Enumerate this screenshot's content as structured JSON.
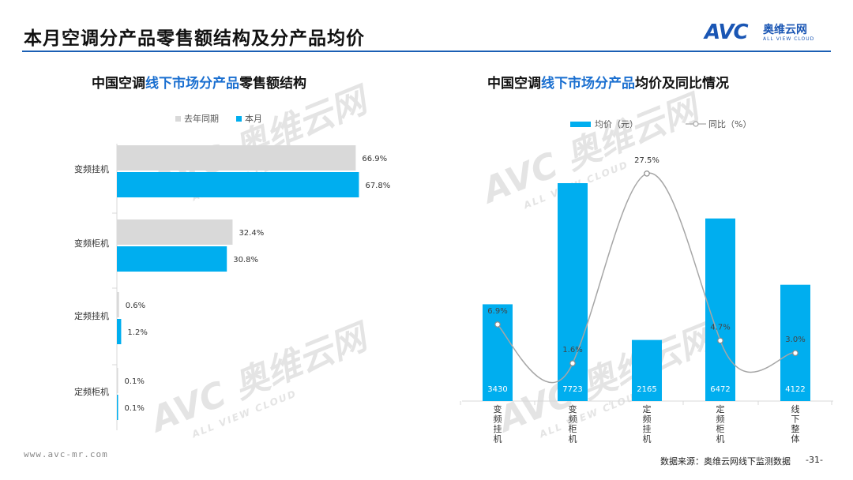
{
  "page": {
    "title": "本月空调分产品零售额结构及分产品均价",
    "footer_url": "www.avc-mr.com",
    "source": "数据来源：奥维云网线下监测数据",
    "page_number": "-31-"
  },
  "logo": {
    "mark": "AVC",
    "name_cn": "奥维云网",
    "name_en": "ALL VIEW CLOUD"
  },
  "watermark": {
    "mark": "AVC",
    "name_cn": "奥维云网",
    "name_en": "ALL VIEW CLOUD"
  },
  "colors": {
    "blue_bar": "#00aeef",
    "grey_bar": "#d9d9d9",
    "line": "#a6a6a6",
    "title_rule": "#1a5fb4",
    "highlight_text": "#1a6fd0"
  },
  "left_chart": {
    "title_pre": "中国空调",
    "title_hl": "线下市场分产品",
    "title_post": "零售额结构"
  },
  "right_chart": {
    "title_pre": "中国空调",
    "title_hl": "线下市场分产品",
    "title_post": "均价及同比情况"
  },
  "chart_data": [
    {
      "type": "bar",
      "orientation": "horizontal",
      "categories": [
        "变频挂机",
        "变频柜机",
        "定频挂机",
        "定频柜机"
      ],
      "series": [
        {
          "name": "去年同期",
          "color": "#d9d9d9",
          "values": [
            66.9,
            32.4,
            0.6,
            0.1
          ],
          "labels": [
            "66.9%",
            "32.4%",
            "0.6%",
            "0.1%"
          ]
        },
        {
          "name": "本月",
          "color": "#00aeef",
          "values": [
            67.8,
            30.8,
            1.2,
            0.1
          ],
          "labels": [
            "67.8%",
            "30.8%",
            "1.2%",
            "0.1%"
          ]
        }
      ],
      "legend_position": "top",
      "grid": false
    },
    {
      "type": "bar",
      "categories": [
        "变频挂机",
        "变频柜机",
        "定频挂机",
        "定频柜机",
        "线下整体"
      ],
      "series": [
        {
          "name": "均价（元）",
          "type": "bar",
          "color": "#00aeef",
          "values": [
            3430,
            7723,
            2165,
            6472,
            4122
          ],
          "labels": [
            "3430",
            "7723",
            "2165",
            "6472",
            "4122"
          ]
        },
        {
          "name": "同比（%）",
          "type": "line",
          "color": "#a6a6a6",
          "values": [
            6.9,
            1.6,
            27.5,
            4.7,
            3.0
          ],
          "labels": [
            "6.9%",
            "1.6%",
            "27.5%",
            "4.7%",
            "3.0%"
          ]
        }
      ],
      "legend_position": "top",
      "grid": false
    }
  ]
}
